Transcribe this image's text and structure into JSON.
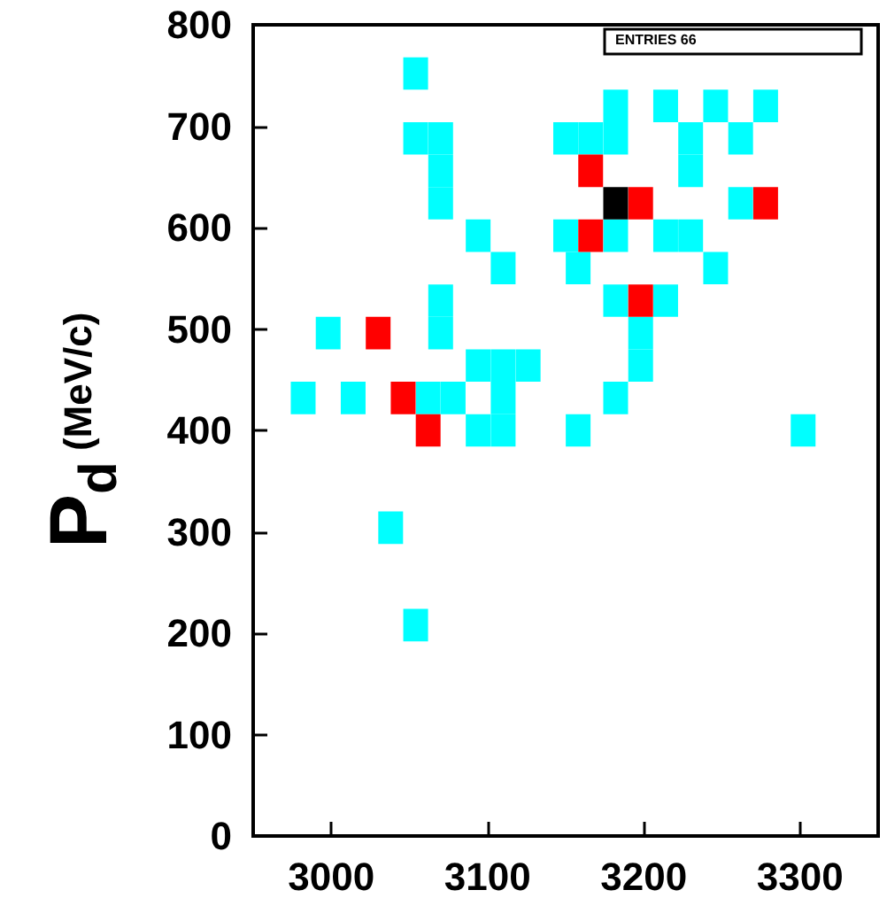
{
  "chart_data": {
    "type": "scatter",
    "ylabel": "P$_{d}$ (MeV/c)",
    "marker": "square",
    "grid": false,
    "annotations": [
      "ENTRIES 66"
    ],
    "xlim": [
      2950,
      3350
    ],
    "xticks": [
      3000,
      3100,
      3200,
      3300
    ],
    "ylim": [
      0,
      800
    ],
    "yticks": [
      0,
      100,
      200,
      300,
      400,
      500,
      600,
      700,
      800
    ],
    "series": [
      {
        "color": "#00ffff",
        "x": [
          3054,
          3182,
          3214,
          3246,
          3278,
          3054,
          3070,
          3150,
          3166,
          3182,
          3230,
          3262,
          3070,
          3230,
          3070,
          3262,
          3094,
          3150,
          3182,
          3214,
          3230,
          3110,
          3158,
          3246,
          3070,
          3182,
          3214,
          2998,
          3070,
          3198,
          3094,
          3110,
          3126,
          3198,
          2982,
          3014,
          3062,
          3078,
          3110,
          3182,
          3094,
          3110,
          3158,
          3302,
          3038,
          3054
        ],
        "values": [
          752,
          720,
          720,
          720,
          720,
          688,
          688,
          688,
          688,
          688,
          688,
          688,
          656,
          656,
          624,
          624,
          592,
          592,
          592,
          592,
          592,
          560,
          560,
          560,
          528,
          528,
          528,
          496,
          496,
          496,
          464,
          464,
          464,
          464,
          432,
          432,
          432,
          432,
          432,
          432,
          400,
          400,
          400,
          400,
          304,
          208
        ]
      },
      {
        "color": "#ff0000",
        "x": [
          3166,
          3198,
          3278,
          3166,
          3198,
          3030,
          3046,
          3062
        ],
        "values": [
          656,
          624,
          624,
          592,
          528,
          496,
          432,
          400
        ]
      },
      {
        "color": "#000000",
        "x": [
          3182
        ],
        "values": [
          624
        ]
      }
    ]
  }
}
